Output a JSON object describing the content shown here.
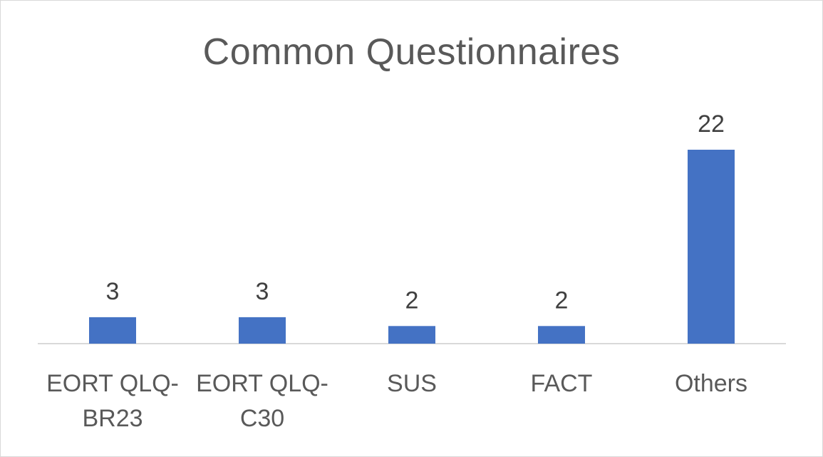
{
  "chart_data": {
    "type": "bar",
    "title": "Common Questionnaires",
    "categories": [
      [
        "EORT QLQ-",
        "BR23"
      ],
      [
        "EORT QLQ-",
        "C30"
      ],
      [
        "SUS"
      ],
      [
        "FACT"
      ],
      [
        "Others"
      ]
    ],
    "values": [
      3,
      3,
      2,
      2,
      22
    ],
    "data_labels": [
      "3",
      "3",
      "2",
      "2",
      "22"
    ],
    "ylim": [
      0,
      22
    ],
    "grid": false,
    "legend": "none",
    "bar_color": "#4472c4",
    "axis_color": "#d9d9d9"
  }
}
